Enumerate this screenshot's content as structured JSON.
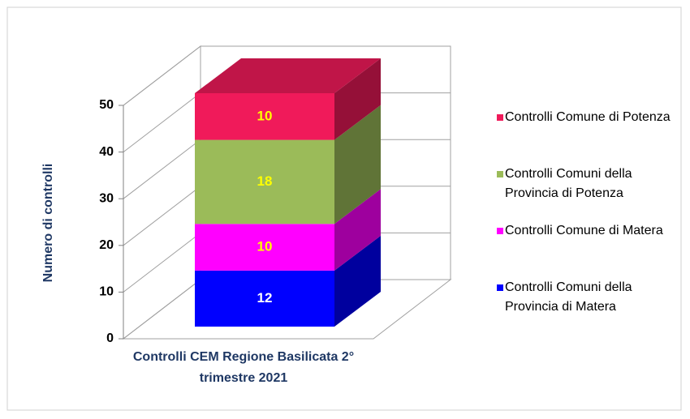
{
  "chart_data": {
    "type": "stacked_bar_3d",
    "categories": [
      "Controlli CEM Regione Basilicata 2° trimestre 2021"
    ],
    "y_label": "Numero di controlli",
    "ylim": [
      0,
      50
    ],
    "yticks": [
      0,
      10,
      20,
      30,
      40,
      50
    ],
    "grid": true,
    "legend": "right",
    "series": [
      {
        "name": "Controlli  Comuni della Provincia di Matera",
        "color": "#0000ff",
        "label_color": "#ffffff",
        "values": [
          12
        ]
      },
      {
        "name": "Controlli Comune di Matera",
        "color": "#ff00ff",
        "label_color": "#ffff00",
        "values": [
          10
        ]
      },
      {
        "name": "Controlli  Comuni della Provincia di Potenza",
        "color": "#9bbb59",
        "label_color": "#ffff00",
        "values": [
          18
        ]
      },
      {
        "name": "Controlli Comune di Potenza",
        "color": "#f01a5a",
        "label_color": "#ffff00",
        "values": [
          10
        ]
      }
    ]
  }
}
